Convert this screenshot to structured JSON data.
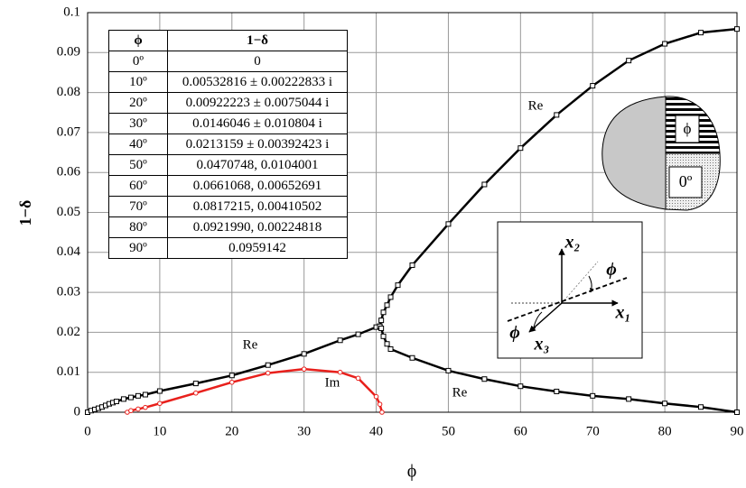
{
  "chart_data": {
    "type": "line",
    "xlabel": "ϕ",
    "ylabel": "1−δ",
    "xlim": [
      0,
      90
    ],
    "ylim": [
      0,
      0.1
    ],
    "xticks": [
      0,
      10,
      20,
      30,
      40,
      50,
      60,
      70,
      80,
      90
    ],
    "yticks": [
      0,
      0.01,
      0.02,
      0.03,
      0.04,
      0.05,
      0.06,
      0.07,
      0.08,
      0.09,
      0.1
    ],
    "grid": true,
    "series": [
      {
        "color": "#000000",
        "marker": "square",
        "x": [
          0,
          0.5,
          1,
          1.5,
          2,
          2.5,
          3,
          3.5,
          4,
          5,
          6,
          7,
          8,
          10,
          15,
          20,
          25,
          30,
          35,
          37.5,
          40,
          40.5
        ],
        "values": [
          0,
          0.0004,
          0.0007,
          0.001,
          0.0013,
          0.0017,
          0.0021,
          0.0024,
          0.0027,
          0.0033,
          0.0037,
          0.0041,
          0.0044,
          0.0053,
          0.0072,
          0.0092,
          0.0118,
          0.0146,
          0.018,
          0.0195,
          0.0213,
          0.0215
        ]
      },
      {
        "color": "#000000",
        "marker": "square",
        "x": [
          40.5,
          40.7,
          41,
          41.5,
          42,
          43,
          45,
          50,
          55,
          60,
          65,
          70,
          75,
          80,
          85,
          90
        ],
        "values": [
          0.0215,
          0.023,
          0.025,
          0.0268,
          0.0288,
          0.0318,
          0.0368,
          0.0471,
          0.057,
          0.0661,
          0.0744,
          0.0817,
          0.088,
          0.0922,
          0.095,
          0.0959
        ]
      },
      {
        "color": "#000000",
        "marker": "square",
        "x": [
          40.5,
          40.7,
          41,
          41.5,
          42,
          45,
          50,
          55,
          60,
          65,
          70,
          75,
          80,
          85,
          90
        ],
        "values": [
          0.0215,
          0.021,
          0.019,
          0.0171,
          0.0158,
          0.0136,
          0.0104,
          0.0083,
          0.0065,
          0.0052,
          0.0041,
          0.0033,
          0.0022,
          0.0013,
          0
        ]
      },
      {
        "color": "#e8201c",
        "marker": "circle",
        "x": [
          5.5,
          6,
          7,
          8,
          10,
          15,
          20,
          25,
          30,
          35,
          37.5,
          40,
          40.5,
          40.8
        ],
        "values": [
          0,
          0.0004,
          0.0008,
          0.0012,
          0.0022,
          0.0048,
          0.0075,
          0.0098,
          0.0108,
          0.01,
          0.0085,
          0.0039,
          0.002,
          0
        ]
      }
    ],
    "annotations": [
      "Re",
      "Re",
      "Re",
      "Im"
    ]
  },
  "table": {
    "header": [
      "ϕ",
      "1−δ"
    ],
    "rows": [
      [
        "0º",
        "0"
      ],
      [
        "10º",
        "0.00532816 ± 0.00222833 i"
      ],
      [
        "20º",
        "0.00922223 ± 0.0075044 i"
      ],
      [
        "30º",
        "0.0146046 ± 0.010804 i"
      ],
      [
        "40º",
        "0.0213159 ± 0.00392423 i"
      ],
      [
        "50º",
        "0.0470748, 0.0104001"
      ],
      [
        "60º",
        "0.0661068, 0.00652691"
      ],
      [
        "70º",
        "0.0817215, 0.00410502"
      ],
      [
        "80º",
        "0.0921990, 0.00224818"
      ],
      [
        "90º",
        "0.0959142"
      ]
    ]
  },
  "insets": {
    "shape": [
      "ϕ",
      "0º"
    ],
    "axes": [
      "x₂",
      "ϕ",
      "x₁",
      "ϕ",
      "x₃"
    ]
  }
}
